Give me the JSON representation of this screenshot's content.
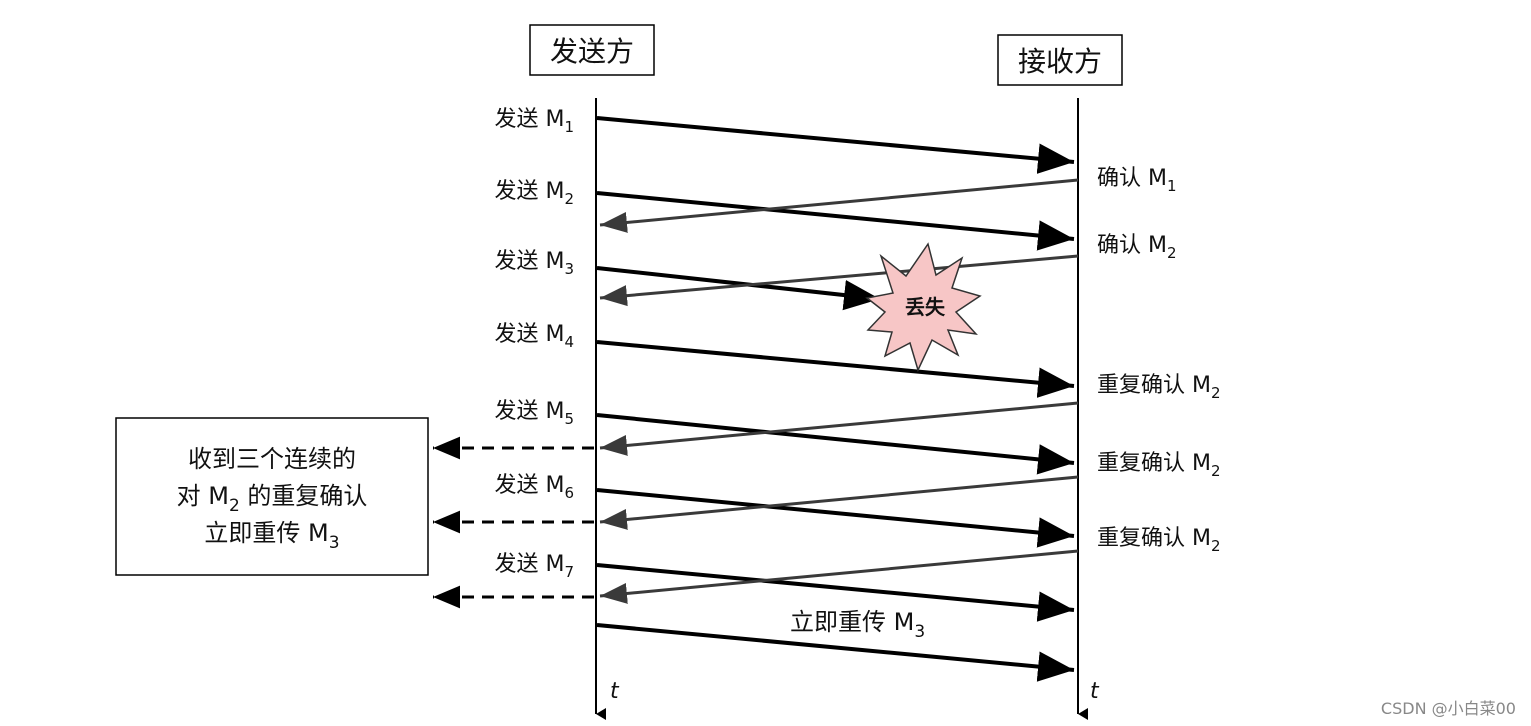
{
  "participants": {
    "sender": "发送方",
    "receiver": "接收方"
  },
  "time_axis_label": "t",
  "send_events": [
    {
      "prefix": "发送 M",
      "sub": "1"
    },
    {
      "prefix": "发送 M",
      "sub": "2"
    },
    {
      "prefix": "发送 M",
      "sub": "3"
    },
    {
      "prefix": "发送 M",
      "sub": "4"
    },
    {
      "prefix": "发送 M",
      "sub": "5"
    },
    {
      "prefix": "发送 M",
      "sub": "6"
    },
    {
      "prefix": "发送 M",
      "sub": "7"
    }
  ],
  "ack_events": [
    {
      "prefix": "确认 M",
      "sub": "1"
    },
    {
      "prefix": "确认 M",
      "sub": "2"
    },
    {
      "prefix": "重复确认 M",
      "sub": "2"
    },
    {
      "prefix": "重复确认 M",
      "sub": "2"
    },
    {
      "prefix": "重复确认 M",
      "sub": "2"
    }
  ],
  "loss_label": "丢失",
  "retransmit_label": {
    "prefix": "立即重传 M",
    "sub": "3"
  },
  "note": {
    "line1": "收到三个连续的",
    "line2_prefix": "对 M",
    "line2_sub": "2",
    "line2_suffix": " 的重复确认",
    "line3_prefix": "立即重传 M",
    "line3_sub": "3"
  },
  "colors": {
    "data_arrow": "#000000",
    "ack_arrow": "#3a3a3a",
    "loss_fill": "#f7c6c6",
    "watermark": "#888888"
  },
  "watermark": "CSDN @小白菜00"
}
